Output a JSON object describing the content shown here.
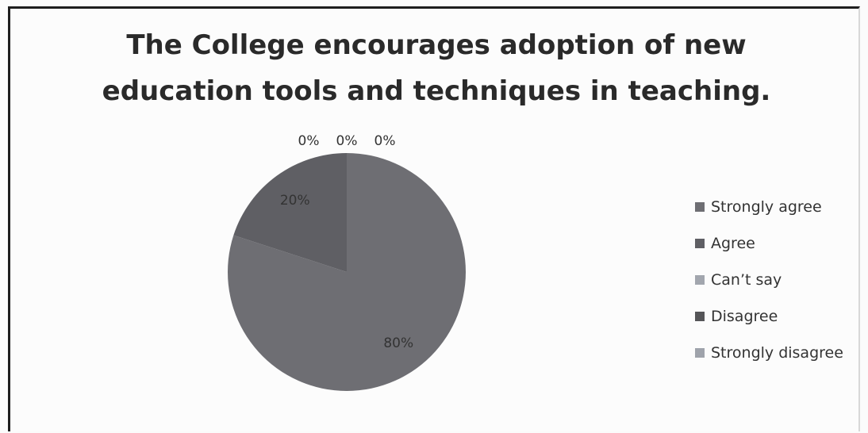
{
  "chart_data": {
    "type": "pie",
    "title_lines": [
      "The College encourages adoption of new",
      "education tools and techniques in teaching."
    ],
    "categories": [
      "Strongly agree",
      "Agree",
      "Can’t say",
      "Disagree",
      "Strongly disagree"
    ],
    "values": [
      80,
      20,
      0,
      0,
      0
    ],
    "data_labels": [
      "80%",
      "20%",
      "0%",
      "0%",
      "0%"
    ],
    "colors": [
      "#6e6e73",
      "#5f5f64",
      "#a2a6ae",
      "#555558",
      "#9fa3ab"
    ],
    "legend_position": "right"
  }
}
